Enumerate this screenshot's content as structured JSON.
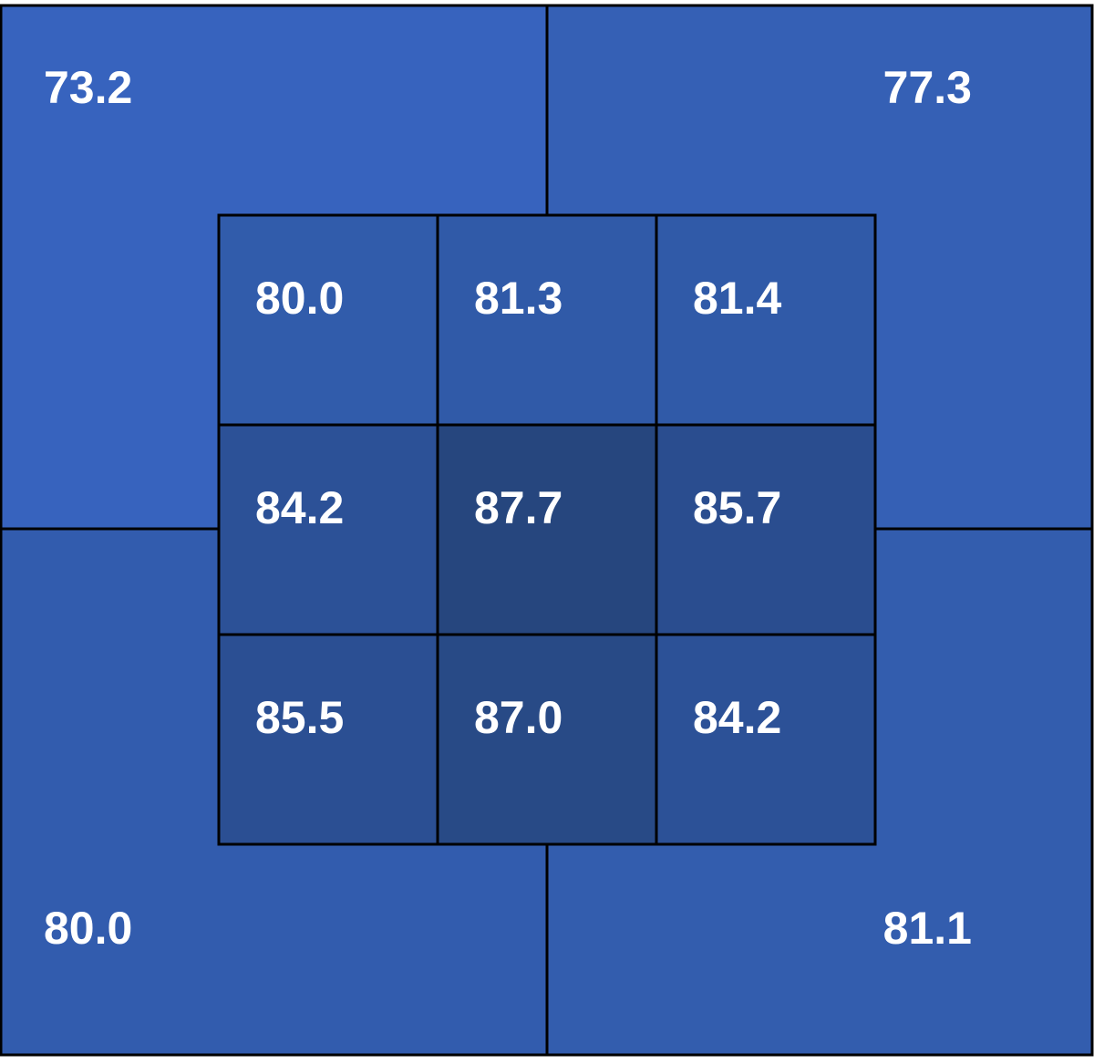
{
  "chart_data": {
    "type": "heatmap",
    "outer": {
      "values": [
        73.2,
        77.3,
        80.0,
        81.1
      ],
      "value_labels": [
        "73.2",
        "77.3",
        "80.0",
        "81.1"
      ],
      "colors": [
        "#3763be",
        "#3560b5",
        "#325cae",
        "#335dae"
      ]
    },
    "inner": {
      "values": [
        80.0,
        81.3,
        81.4,
        84.2,
        87.7,
        85.7,
        85.5,
        87.0,
        84.2
      ],
      "value_labels": [
        "80.0",
        "81.3",
        "81.4",
        "84.2",
        "87.7",
        "85.7",
        "85.5",
        "87.0",
        "84.2"
      ],
      "colors": [
        "#315cab",
        "#305aa8",
        "#305aa8",
        "#2c5197",
        "#26467e",
        "#2a4d8f",
        "#2b4f93",
        "#284a86",
        "#2c5197"
      ]
    }
  }
}
